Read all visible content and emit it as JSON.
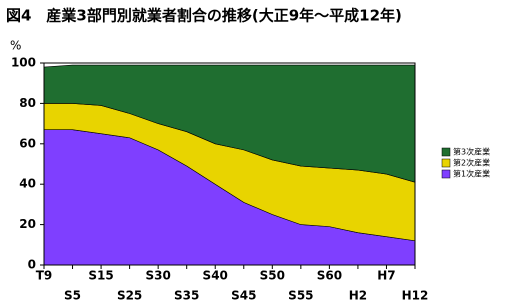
{
  "chart_data": {
    "type": "stacked-area",
    "title": "図4　産業3部門別就業者割合の推移(大正9年～平成12年)",
    "y_label": "%",
    "categories": [
      "T9",
      "S5",
      "S15",
      "S25",
      "S30",
      "S35",
      "S40",
      "S45",
      "S50",
      "S55",
      "S60",
      "H2",
      "H7",
      "H12"
    ],
    "series": [
      {
        "name": "第1次産業",
        "color": "#7f3fff",
        "values": [
          67,
          67,
          65,
          63,
          57,
          49,
          40,
          31,
          25,
          20,
          19,
          16,
          14,
          12
        ]
      },
      {
        "name": "第2次産業",
        "color": "#e8d400",
        "values": [
          13,
          13,
          14,
          12,
          13,
          17,
          20,
          26,
          27,
          29,
          29,
          31,
          31,
          29
        ]
      },
      {
        "name": "第3次産業",
        "color": "#1f6e30",
        "values": [
          18,
          19,
          20,
          24,
          29,
          33,
          39,
          42,
          47,
          50,
          51,
          52,
          54,
          58
        ]
      }
    ],
    "ylim": [
      0,
      100
    ],
    "yticks": [
      0,
      20,
      40,
      60,
      80,
      100
    ]
  }
}
